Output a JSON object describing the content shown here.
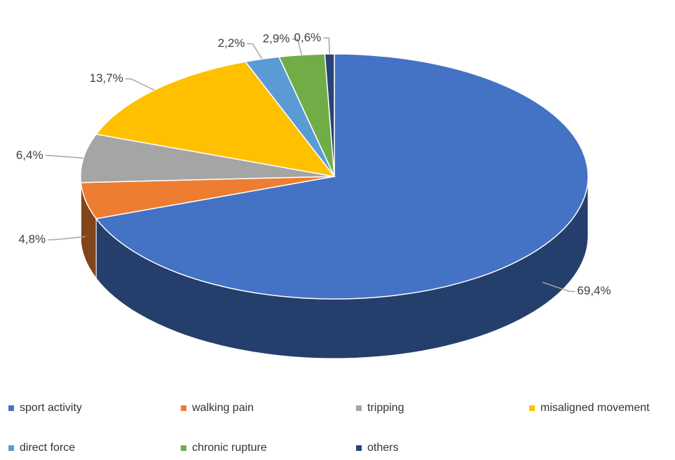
{
  "chart_data": {
    "type": "pie3d",
    "categories": [
      "sport activity",
      "walking pain",
      "tripping",
      "misaligned movement",
      "direct force",
      "chronic rupture",
      "others"
    ],
    "values": [
      69.4,
      4.8,
      6.4,
      13.7,
      2.2,
      2.9,
      0.6
    ],
    "value_labels": [
      "69,4%",
      "4,8%",
      "6,4%",
      "13,7%",
      "2,2%",
      "2,9%",
      "0,6%"
    ],
    "colors": [
      "#4472c4",
      "#ed7d31",
      "#a5a5a5",
      "#ffc000",
      "#5b9bd5",
      "#70ad47",
      "#264478"
    ],
    "legend": "bottom"
  }
}
